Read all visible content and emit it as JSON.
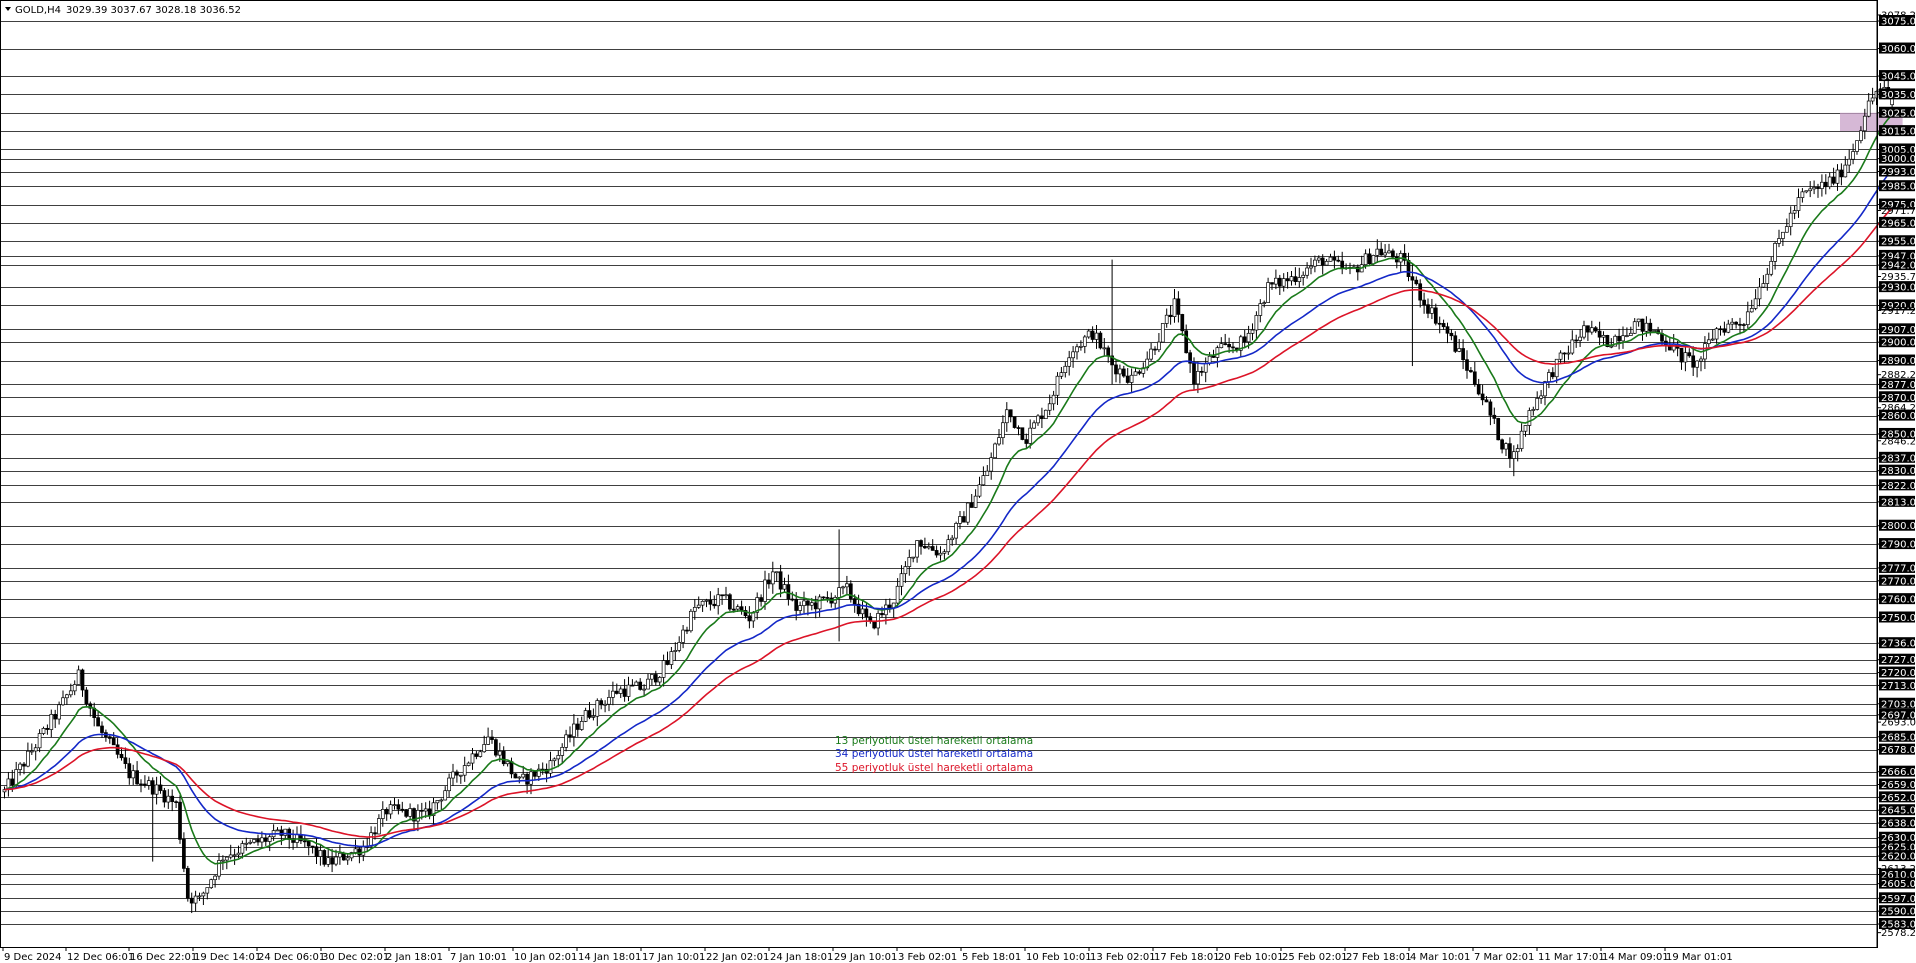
{
  "header": {
    "symbol": "GOLD,H4",
    "ohlc": "3029.39 3037.67 3028.18 3036.52"
  },
  "colors": {
    "background": "#ffffff",
    "candle": "#000000",
    "ema13": "#1a7a1a",
    "ema34": "#1428c8",
    "ema55": "#dc1428",
    "zone": "#c8a0c8",
    "hline": "#000000"
  },
  "legend": [
    {
      "label": "13 periyotluk üstel hareketli ortalama",
      "color": "#1a7a1a"
    },
    {
      "label": "34 periyotluk üstel hareketli ortalama",
      "color": "#1428c8"
    },
    {
      "label": "55 periyotluk üstel hareketli ortalama",
      "color": "#dc1428"
    }
  ],
  "chart_data": {
    "type": "candlestick",
    "symbol": "GOLD",
    "timeframe": "H4",
    "ylim": [
      2578.29,
      3078.29
    ],
    "y_tick_labels": [
      3078.29,
      3075.0,
      3060.0,
      3045.0,
      3035.0,
      3025.0,
      3015.0,
      3005.0,
      3000.0,
      2993.0,
      2985.0,
      2975.0,
      2971.75,
      2965.0,
      2955.0,
      2947.0,
      2942.0,
      2935.79,
      2930.0,
      2920.0,
      2917.29,
      2907.0,
      2900.0,
      2890.0,
      2882.29,
      2877.0,
      2870.0,
      2864.29,
      2860.0,
      2850.0,
      2846.29,
      2837.0,
      2830.0,
      2822.0,
      2813.0,
      2800.0,
      2790.0,
      2777.0,
      2770.0,
      2760.0,
      2750.0,
      2736.0,
      2727.0,
      2720.0,
      2713.0,
      2703.0,
      2697.0,
      2693.0,
      2685.0,
      2678.0,
      2666.0,
      2659.0,
      2652.0,
      2645.0,
      2638.0,
      2630.0,
      2625.0,
      2620.0,
      2613.29,
      2610.0,
      2605.0,
      2597.0,
      2590.0,
      2583.0,
      2578.29
    ],
    "horizontal_levels": [
      3075,
      3060,
      3045,
      3035,
      3025,
      3015,
      3005,
      3000,
      2993,
      2985,
      2975,
      2965,
      2955,
      2947,
      2942,
      2930,
      2920,
      2907,
      2900,
      2890,
      2877,
      2870,
      2860,
      2850,
      2837,
      2830,
      2822,
      2813,
      2800,
      2790,
      2777,
      2770,
      2760,
      2750,
      2736,
      2727,
      2720,
      2713,
      2703,
      2697,
      2685,
      2678,
      2666,
      2659,
      2652,
      2645,
      2638,
      2630,
      2625,
      2620,
      2610,
      2605,
      2597,
      2590,
      2583
    ],
    "highlighted_levels": [
      3035.0
    ],
    "x_tick_labels": [
      "9 Dec 2024",
      "12 Dec 06:01",
      "16 Dec 22:01",
      "19 Dec 14:01",
      "24 Dec 06:01",
      "30 Dec 02:01",
      "2 Jan 18:01",
      "7 Jan 10:01",
      "10 Jan 02:01",
      "14 Jan 18:01",
      "17 Jan 10:01",
      "22 Jan 02:01",
      "24 Jan 18:01",
      "29 Jan 10:01",
      "3 Feb 02:01",
      "5 Feb 18:01",
      "10 Feb 10:01",
      "13 Feb 02:01",
      "17 Feb 18:01",
      "20 Feb 10:01",
      "25 Feb 02:01",
      "27 Feb 18:01",
      "4 Mar 10:01",
      "7 Mar 02:01",
      "11 Mar 17:01",
      "14 Mar 09:01",
      "19 Mar 01:01"
    ],
    "price_path": [
      [
        0,
        2655
      ],
      [
        14,
        2700
      ],
      [
        19,
        2718
      ],
      [
        24,
        2690
      ],
      [
        32,
        2665
      ],
      [
        40,
        2655
      ],
      [
        44,
        2648
      ],
      [
        47,
        2598
      ],
      [
        50,
        2596
      ],
      [
        56,
        2620
      ],
      [
        64,
        2627
      ],
      [
        71,
        2632
      ],
      [
        78,
        2625
      ],
      [
        83,
        2616
      ],
      [
        92,
        2625
      ],
      [
        98,
        2645
      ],
      [
        108,
        2642
      ],
      [
        116,
        2665
      ],
      [
        124,
        2685
      ],
      [
        132,
        2660
      ],
      [
        140,
        2670
      ],
      [
        148,
        2695
      ],
      [
        157,
        2710
      ],
      [
        164,
        2712
      ],
      [
        170,
        2725
      ],
      [
        177,
        2755
      ],
      [
        184,
        2760
      ],
      [
        191,
        2750
      ],
      [
        197,
        2775
      ],
      [
        203,
        2755
      ],
      [
        209,
        2758
      ],
      [
        216,
        2765
      ],
      [
        222,
        2745
      ],
      [
        228,
        2760
      ],
      [
        234,
        2792
      ],
      [
        240,
        2785
      ],
      [
        246,
        2805
      ],
      [
        252,
        2830
      ],
      [
        257,
        2862
      ],
      [
        262,
        2848
      ],
      [
        268,
        2868
      ],
      [
        273,
        2895
      ],
      [
        279,
        2905
      ],
      [
        284,
        2888
      ],
      [
        289,
        2880
      ],
      [
        294,
        2895
      ],
      [
        300,
        2920
      ],
      [
        305,
        2880
      ],
      [
        311,
        2895
      ],
      [
        318,
        2900
      ],
      [
        324,
        2930
      ],
      [
        330,
        2935
      ],
      [
        338,
        2945
      ],
      [
        345,
        2938
      ],
      [
        352,
        2950
      ],
      [
        358,
        2945
      ],
      [
        364,
        2922
      ],
      [
        370,
        2905
      ],
      [
        378,
        2875
      ],
      [
        384,
        2845
      ],
      [
        387,
        2838
      ],
      [
        391,
        2862
      ],
      [
        397,
        2885
      ],
      [
        405,
        2907
      ],
      [
        411,
        2900
      ],
      [
        418,
        2910
      ],
      [
        424,
        2905
      ],
      [
        430,
        2892
      ],
      [
        434,
        2888
      ],
      [
        439,
        2907
      ],
      [
        446,
        2912
      ],
      [
        452,
        2940
      ],
      [
        457,
        2965
      ],
      [
        461,
        2980
      ],
      [
        466,
        2985
      ],
      [
        470,
        2990
      ],
      [
        474,
        3005
      ],
      [
        477,
        3025
      ],
      [
        480,
        3037
      ],
      [
        483,
        3036
      ]
    ],
    "volatility": 3.5,
    "ema_periods": [
      13,
      34,
      55
    ],
    "series": [
      {
        "name": "13 periyotluk üstel hareketli ortalama",
        "period": 13
      },
      {
        "name": "34 periyotluk üstel hareketli ortalama",
        "period": 34
      },
      {
        "name": "55 periyotluk üstel hareketli ortalama",
        "period": 55
      }
    ],
    "zone": {
      "price_low": 3015,
      "price_high": 3025,
      "bar_start": 470,
      "bar_end": 484
    }
  }
}
